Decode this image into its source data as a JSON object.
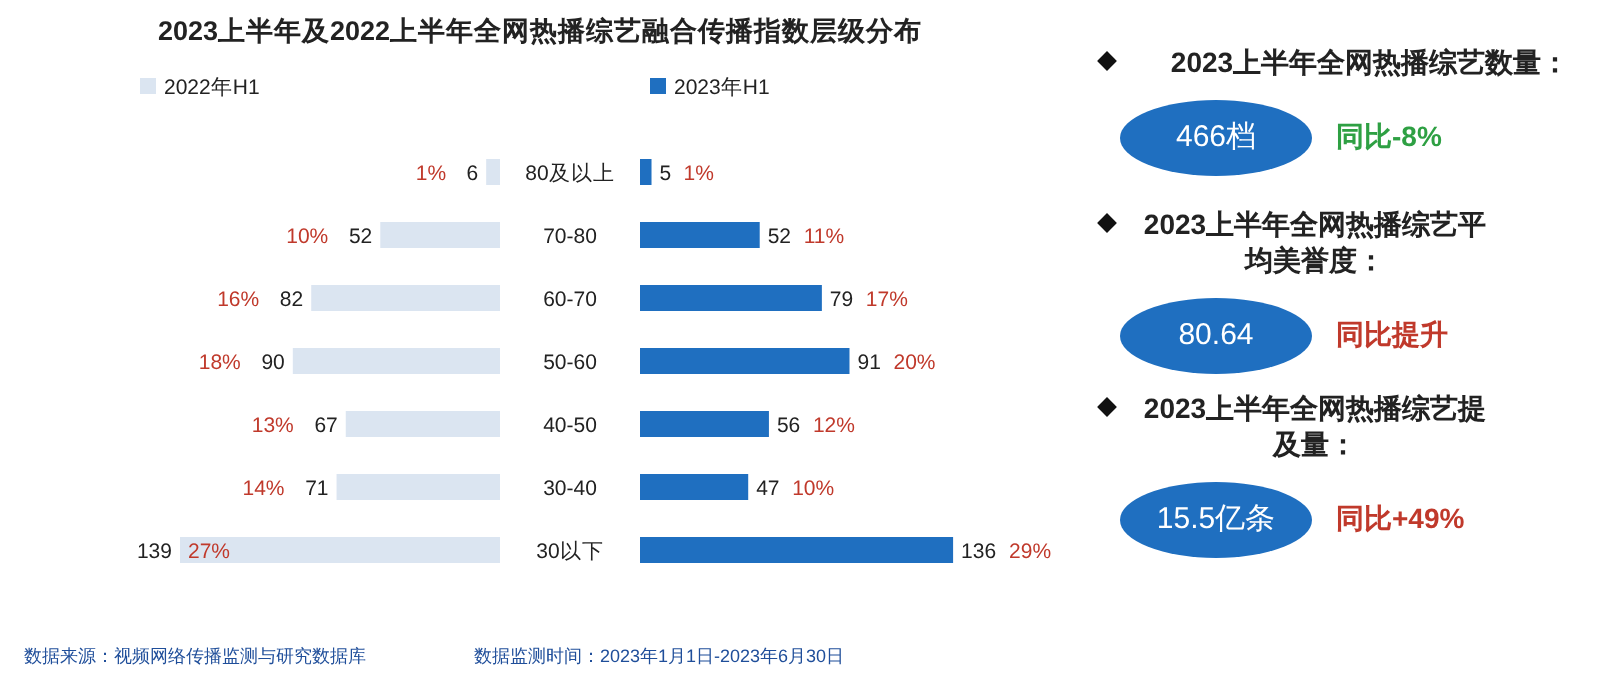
{
  "chart_data": [
    {
      "type": "bar",
      "orientation": "horizontal",
      "title": "2023上半年及2022上半年全网热播综艺融合传播指数层级分布",
      "categories": [
        "80及以上",
        "70-80",
        "60-70",
        "50-60",
        "40-50",
        "30-40",
        "30以下"
      ],
      "series": [
        {
          "name": "2022年H1",
          "color": "#dbe5f1",
          "values": [
            6,
            52,
            82,
            90,
            67,
            71,
            139
          ]
        }
      ],
      "data_labels": true,
      "legend": "top",
      "tick_labels": false,
      "annotations": [
        {
          "text": "1%",
          "x": 6,
          "y": "80及以上"
        },
        {
          "text": "10%",
          "x": 52,
          "y": "70-80"
        },
        {
          "text": "16%",
          "x": 82,
          "y": "60-70"
        },
        {
          "text": "18%",
          "x": 90,
          "y": "50-60"
        },
        {
          "text": "13%",
          "x": 67,
          "y": "40-50"
        },
        {
          "text": "14%",
          "x": 71,
          "y": "30-40"
        },
        {
          "text": "27%",
          "x": 139,
          "y": "30以下"
        },
        "数据来源：视频网络传播监测与研究数据库",
        "数据监测时间：2023年1月1日-2023年6月30日"
      ]
    },
    {
      "type": "bar",
      "orientation": "horizontal",
      "categories": [
        "80及以上",
        "70-80",
        "60-70",
        "50-60",
        "40-50",
        "30-40",
        "30以下"
      ],
      "series": [
        {
          "name": "2023年H1",
          "color": "#1f6fc0",
          "values": [
            5,
            52,
            79,
            91,
            56,
            47,
            136
          ]
        }
      ],
      "data_labels": true,
      "legend": "top left",
      "tick_labels": "y",
      "annotations": [
        {
          "text": "1%",
          "x": 5,
          "y": "80及以上"
        },
        {
          "text": "11%",
          "x": 52,
          "y": "70-80"
        },
        {
          "text": "17%",
          "x": 79,
          "y": "60-70"
        },
        {
          "text": "20%",
          "x": 91,
          "y": "50-60"
        },
        {
          "text": "12%",
          "x": 56,
          "y": "40-50"
        },
        {
          "text": "10%",
          "x": 47,
          "y": "30-40"
        },
        {
          "text": "29%",
          "x": 136,
          "y": "30以下"
        }
      ]
    },
    {
      "type": "other",
      "annotations": [
        "2023上半年全网热播综艺数量：",
        "466档",
        "同比-8%",
        "2023上半年全网热播综艺平均美誉度：",
        "80.64",
        "同比提升",
        "2023上半年全网热播综艺提及量：",
        "15.5亿条",
        "同比+49%"
      ]
    }
  ]
}
